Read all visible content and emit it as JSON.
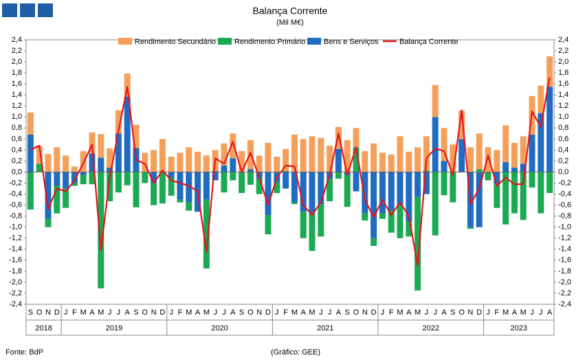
{
  "chart_data": {
    "type": "bar",
    "title": "Balança Corrente",
    "subtitle": "(Mil M€)",
    "stacked": true,
    "categories": [
      "S",
      "O",
      "N",
      "D",
      "J",
      "F",
      "M",
      "A",
      "M",
      "J",
      "J",
      "A",
      "S",
      "O",
      "N",
      "D",
      "J",
      "F",
      "M",
      "A",
      "M",
      "J",
      "J",
      "A",
      "S",
      "O",
      "N",
      "D",
      "J",
      "F",
      "M",
      "A",
      "M",
      "J",
      "J",
      "A",
      "S",
      "O",
      "N",
      "D",
      "J",
      "F",
      "M",
      "A",
      "M",
      "J",
      "J",
      "A",
      "S",
      "O",
      "N",
      "D",
      "J",
      "F",
      "M",
      "A",
      "M",
      "J",
      "J",
      "A"
    ],
    "years": [
      {
        "label": "2018",
        "months": 4
      },
      {
        "label": "2019",
        "months": 12
      },
      {
        "label": "2020",
        "months": 12
      },
      {
        "label": "2021",
        "months": 12
      },
      {
        "label": "2022",
        "months": 12
      },
      {
        "label": "2023",
        "months": 8
      }
    ],
    "series": [
      {
        "name": "Rendimento Secundário",
        "color": "#f5a05a",
        "values": [
          0.4,
          0.33,
          0.33,
          0.45,
          0.3,
          0.1,
          0.38,
          0.38,
          0.43,
          0.35,
          0.42,
          0.42,
          0.42,
          0.35,
          0.4,
          0.6,
          0.28,
          0.35,
          0.45,
          0.37,
          0.3,
          0.38,
          0.4,
          0.45,
          0.38,
          0.53,
          0.3,
          0.53,
          0.28,
          0.4,
          0.68,
          0.6,
          0.65,
          0.62,
          0.48,
          0.4,
          0.58,
          0.35,
          0.38,
          0.52,
          0.35,
          0.32,
          0.65,
          0.37,
          0.45,
          0.62,
          0.58,
          0.6,
          0.5,
          0.52,
          0.45,
          0.65,
          0.45,
          0.4,
          0.67,
          0.45,
          0.5,
          0.7,
          0.5,
          0.55
        ]
      },
      {
        "name": "Rendimento Primário",
        "color": "#1aaa52",
        "values": [
          -0.68,
          0.15,
          -0.15,
          -0.5,
          -0.35,
          -0.05,
          -0.17,
          -0.22,
          -2.11,
          -0.53,
          -0.37,
          -0.24,
          -0.64,
          -0.2,
          -0.4,
          -0.57,
          -0.33,
          -0.05,
          -0.15,
          0.0,
          -1.25,
          0.02,
          -0.37,
          -0.15,
          -0.38,
          -0.23,
          -0.28,
          -0.35,
          -0.2,
          0.02,
          -0.03,
          -0.48,
          -0.68,
          -0.59,
          -0.41,
          -0.12,
          -0.58,
          0.45,
          -0.13,
          -0.14,
          -0.1,
          -0.4,
          -0.6,
          -0.27,
          -1.7,
          0.03,
          -1.15,
          -0.42,
          -0.55,
          0.0,
          -0.03,
          0.05,
          -0.15,
          -0.45,
          -0.95,
          -0.75,
          -0.87,
          -0.28,
          -0.75,
          -0.38
        ]
      },
      {
        "name": "Bens e Serviços",
        "color": "#1f6cc2",
        "values": [
          0.68,
          0.0,
          -0.85,
          -0.25,
          -0.3,
          -0.2,
          -0.05,
          0.34,
          0.26,
          0.08,
          0.7,
          1.37,
          0.44,
          0.0,
          -0.2,
          0.0,
          -0.1,
          -0.5,
          -0.55,
          -0.72,
          -0.5,
          -0.15,
          0.12,
          0.25,
          0.0,
          0.05,
          -0.12,
          -0.78,
          -0.18,
          -0.3,
          -0.55,
          -0.72,
          -0.75,
          -0.58,
          -0.12,
          0.42,
          -0.05,
          -0.35,
          -0.75,
          -1.2,
          -0.75,
          -0.7,
          -0.6,
          -0.9,
          -0.45,
          -0.4,
          1.0,
          0.2,
          0.0,
          0.6,
          -1.0,
          -1.0,
          0.0,
          -0.2,
          0.18,
          0.08,
          0.15,
          0.68,
          1.07,
          1.55
        ]
      },
      {
        "name": "Balança Corrente",
        "color": "#e4141b",
        "type": "line",
        "values": [
          0.4,
          0.48,
          -0.67,
          -0.3,
          -0.35,
          -0.15,
          0.16,
          0.5,
          -1.42,
          -0.1,
          0.75,
          1.55,
          0.22,
          0.15,
          -0.2,
          0.03,
          -0.15,
          -0.2,
          -0.25,
          -0.35,
          -1.45,
          0.25,
          0.15,
          0.55,
          0.0,
          0.35,
          -0.1,
          -0.6,
          -0.1,
          0.12,
          0.1,
          -0.6,
          -0.78,
          -0.55,
          -0.05,
          0.7,
          -0.05,
          0.45,
          -0.5,
          -0.82,
          -0.5,
          -0.78,
          -0.55,
          -0.8,
          -1.7,
          0.25,
          0.43,
          0.38,
          -0.05,
          1.12,
          -0.58,
          -0.3,
          0.3,
          -0.25,
          -0.1,
          -0.22,
          -0.22,
          1.1,
          0.82,
          1.72
        ]
      }
    ],
    "ylim": [
      -2.4,
      2.4
    ],
    "yticks": [
      {
        "value": -2.4,
        "label": "-2,4"
      },
      {
        "value": -2.2,
        "label": "-2,2"
      },
      {
        "value": -2.0,
        "label": "-2,0"
      },
      {
        "value": -1.8,
        "label": "-1,8"
      },
      {
        "value": -1.6,
        "label": "-1,6"
      },
      {
        "value": -1.4,
        "label": "-1,4"
      },
      {
        "value": -1.2,
        "label": "-1,2"
      },
      {
        "value": -1.0,
        "label": "-1,0"
      },
      {
        "value": -0.8,
        "label": "-0,8"
      },
      {
        "value": -0.6,
        "label": "-0,6"
      },
      {
        "value": -0.4,
        "label": "-0,4"
      },
      {
        "value": -0.2,
        "label": "-0,2"
      },
      {
        "value": 0,
        "label": "0,0"
      },
      {
        "value": 0.2,
        "label": "0,2"
      },
      {
        "value": 0.4,
        "label": "0,4"
      },
      {
        "value": 0.6,
        "label": "0,6"
      },
      {
        "value": 0.8,
        "label": "0,8"
      },
      {
        "value": 1.0,
        "label": "1,0"
      },
      {
        "value": 1.2,
        "label": "1,2"
      },
      {
        "value": 1.4,
        "label": "1,4"
      },
      {
        "value": 1.6,
        "label": "1,6"
      },
      {
        "value": 1.8,
        "label": "1,8"
      },
      {
        "value": 2.0,
        "label": "2,0"
      },
      {
        "value": 2.2,
        "label": "2,2"
      },
      {
        "value": 2.4,
        "label": "2,4"
      }
    ],
    "y2lim": [
      -2.4,
      2.4
    ],
    "y2ticks": [
      {
        "value": -2.4,
        "label": "-2,4"
      },
      {
        "value": -2.2,
        "label": "-2,2"
      },
      {
        "value": -2.0,
        "label": "-2,0"
      },
      {
        "value": -1.8,
        "label": "-1,8"
      },
      {
        "value": -1.6,
        "label": "-1,6"
      },
      {
        "value": -1.4,
        "label": "-1,4"
      },
      {
        "value": -1.2,
        "label": "-1,2"
      },
      {
        "value": -1.0,
        "label": "-1,0"
      },
      {
        "value": -0.8,
        "label": "-0,8"
      },
      {
        "value": -0.6,
        "label": "-0,6"
      },
      {
        "value": -0.4,
        "label": "-0,4"
      },
      {
        "value": -0.2,
        "label": "-0,2"
      },
      {
        "value": 0,
        "label": "0,0"
      },
      {
        "value": 0.2,
        "label": "0,2"
      },
      {
        "value": 0.4,
        "label": "0,4"
      },
      {
        "value": 0.6,
        "label": "0,6"
      },
      {
        "value": 0.8,
        "label": "0,8"
      },
      {
        "value": 1.0,
        "label": "1,0"
      },
      {
        "value": 1.2,
        "label": "1,2"
      },
      {
        "value": 1.4,
        "label": "1,4"
      },
      {
        "value": 1.6,
        "label": "1,6"
      },
      {
        "value": 1.8,
        "label": "1,8"
      },
      {
        "value": 2.0,
        "label": "2,0"
      },
      {
        "value": 2.2,
        "label": "2,2"
      },
      {
        "value": 2.4,
        "label": "2,4"
      }
    ],
    "source": "Fonte: BdP",
    "credit": "(Gráfico: GEE)"
  }
}
